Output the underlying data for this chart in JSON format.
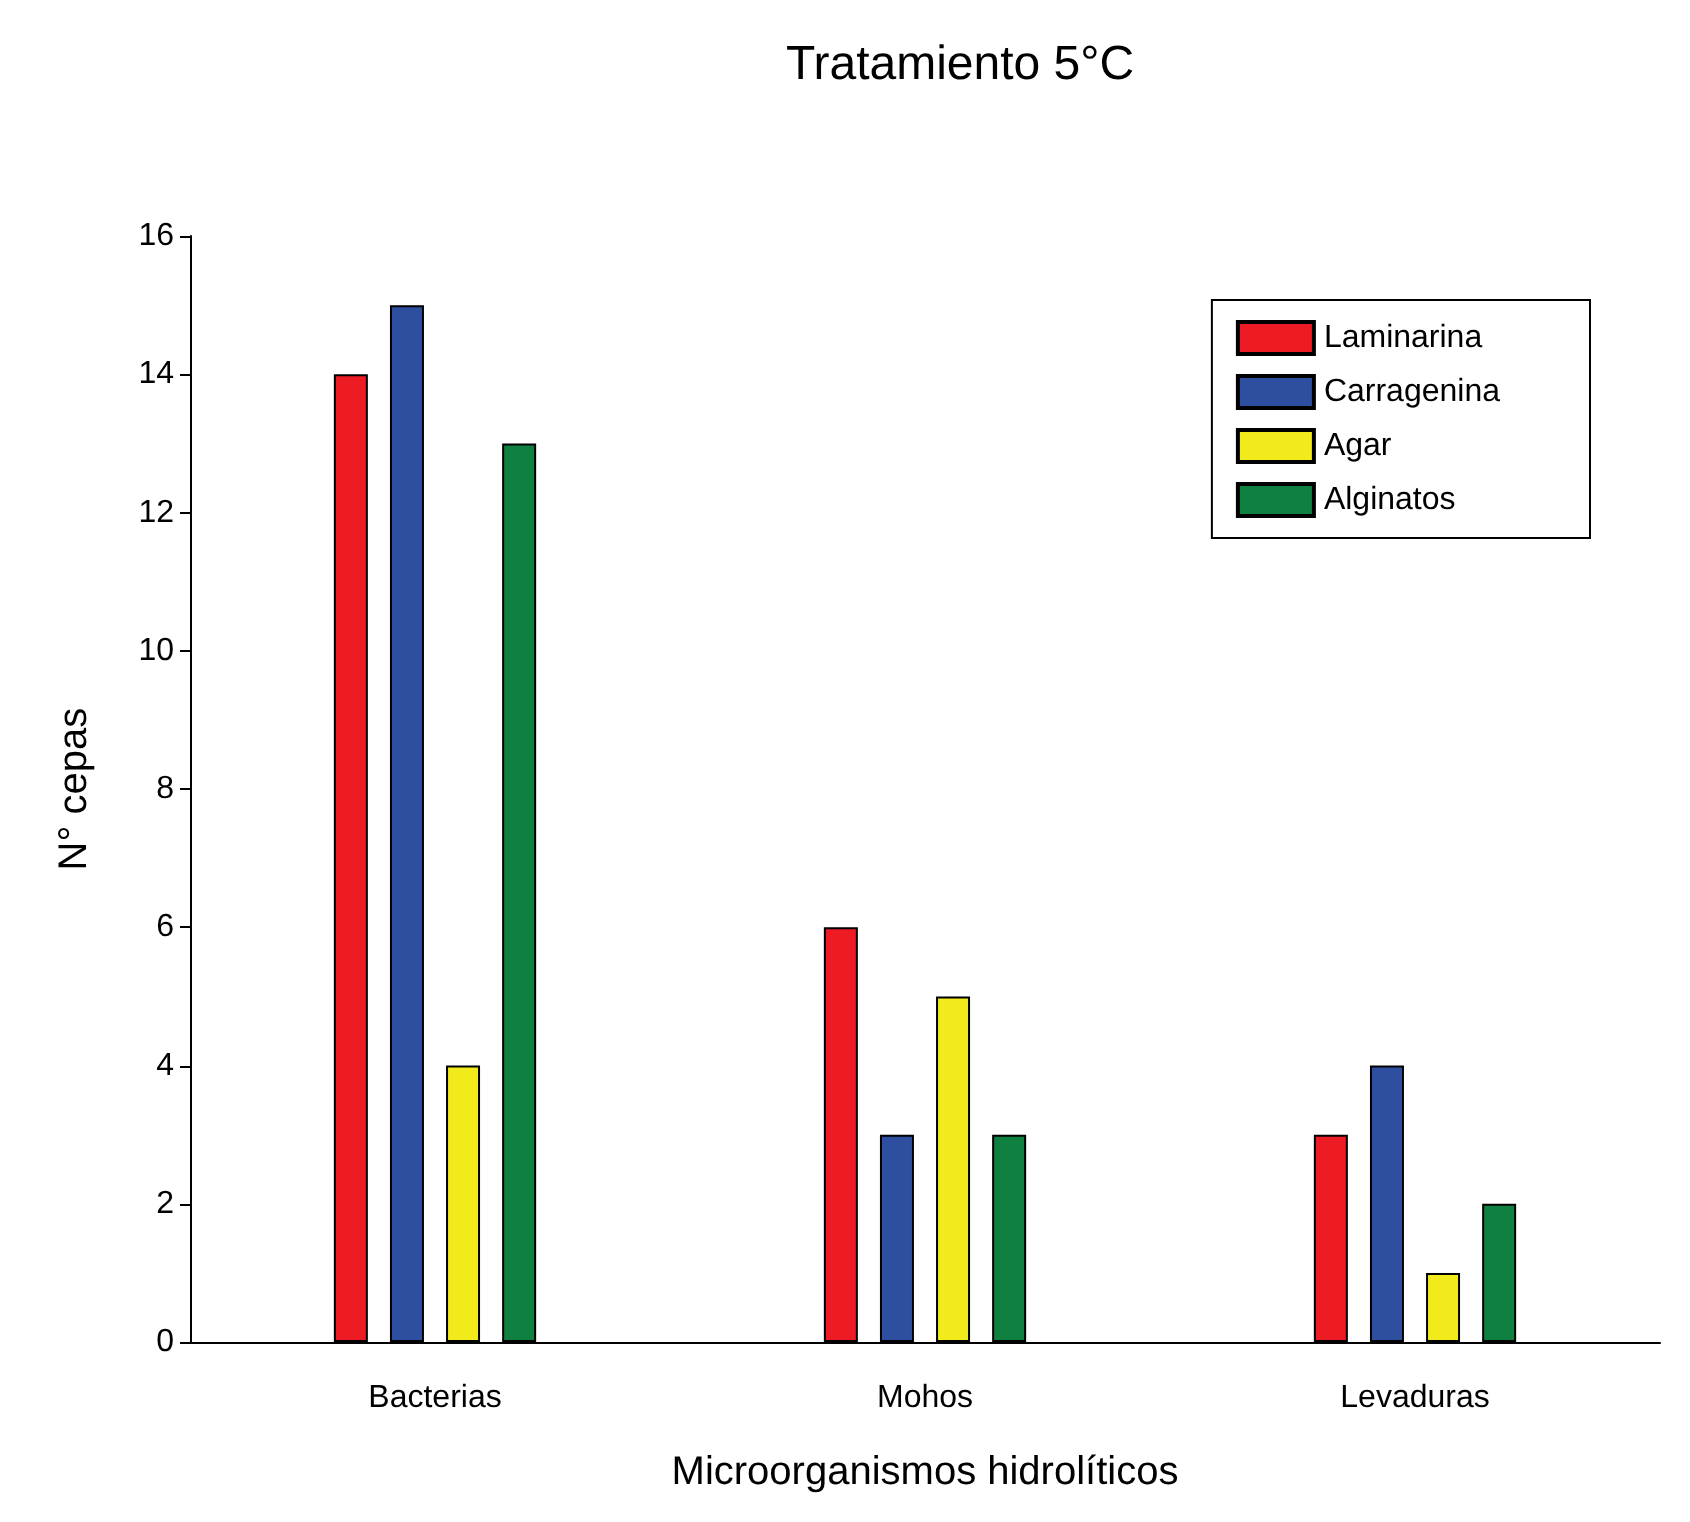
{
  "chart_data": {
    "type": "bar",
    "title": "Tratamiento 5°C",
    "xlabel": "Microorganismos hidrolíticos",
    "ylabel": "N° cepas",
    "categories": [
      "Bacterias",
      "Mohos",
      "Levaduras"
    ],
    "series": [
      {
        "name": "Laminarina",
        "color": "#ed1c24",
        "values": [
          14,
          6,
          3
        ]
      },
      {
        "name": "Carragenina",
        "color": "#2e4fa0",
        "values": [
          15,
          3,
          4
        ]
      },
      {
        "name": "Agar",
        "color": "#f2eb1b",
        "values": [
          4,
          5,
          1
        ]
      },
      {
        "name": "Alginatos",
        "color": "#0f8040",
        "values": [
          13,
          3,
          2
        ]
      }
    ],
    "ylim": [
      0,
      16
    ],
    "yticks": [
      0,
      2,
      4,
      6,
      8,
      10,
      12,
      14,
      16
    ],
    "grid": false,
    "legend": "top right"
  }
}
